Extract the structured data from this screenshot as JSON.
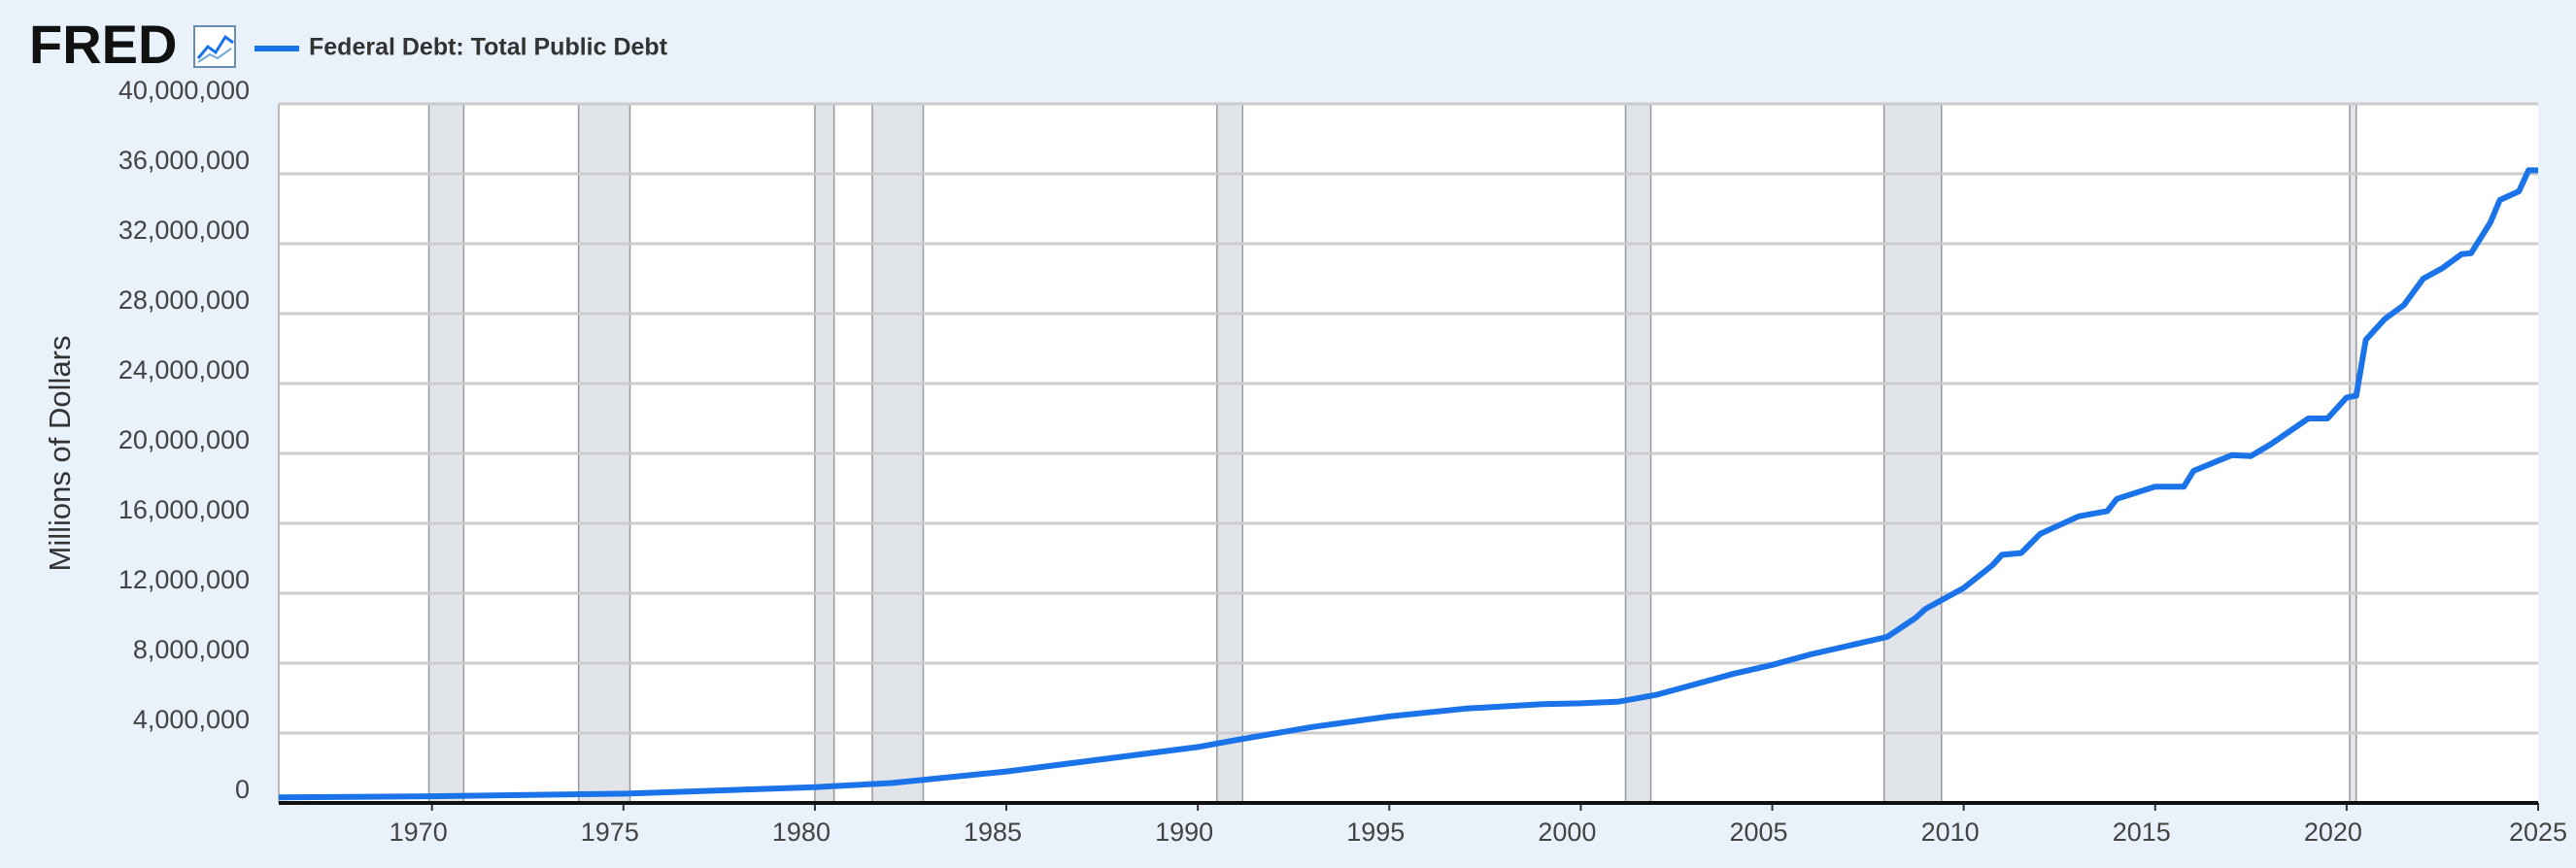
{
  "chart_data": {
    "type": "line",
    "header": {
      "logo": "FRED"
    },
    "y_label": "Millions of Dollars",
    "xlim": [
      1966,
      2025
    ],
    "xticks": [
      1970,
      1975,
      1980,
      1985,
      1990,
      1995,
      2000,
      2005,
      2010,
      2015,
      2020,
      2025
    ],
    "ylim": [
      0,
      40000000
    ],
    "yticks": [
      {
        "value": 0,
        "label": "0"
      },
      {
        "value": 4000000,
        "label": "4,000,000"
      },
      {
        "value": 8000000,
        "label": "8,000,000"
      },
      {
        "value": 12000000,
        "label": "12,000,000"
      },
      {
        "value": 16000000,
        "label": "16,000,000"
      },
      {
        "value": 20000000,
        "label": "20,000,000"
      },
      {
        "value": 24000000,
        "label": "24,000,000"
      },
      {
        "value": 28000000,
        "label": "28,000,000"
      },
      {
        "value": 32000000,
        "label": "32,000,000"
      },
      {
        "value": 36000000,
        "label": "36,000,000"
      },
      {
        "value": 40000000,
        "label": "40,000,000"
      }
    ],
    "grid": true,
    "recessions": [
      [
        1969.92,
        1970.83
      ],
      [
        1973.83,
        1975.17
      ],
      [
        1980.0,
        1980.5
      ],
      [
        1981.5,
        1982.83
      ],
      [
        1990.5,
        1991.17
      ],
      [
        2001.17,
        2001.83
      ],
      [
        2007.92,
        2009.42
      ],
      [
        2020.08,
        2020.25
      ]
    ],
    "x": [
      1966,
      1970,
      1975,
      1980,
      1982,
      1985,
      1990,
      1991,
      1993,
      1995,
      1997,
      1999,
      2000,
      2001,
      2002,
      2003,
      2004,
      2005,
      2006,
      2007,
      2008,
      2008.75,
      2009,
      2009.75,
      2010,
      2010.75,
      2011,
      2011.5,
      2012,
      2013,
      2013.75,
      2014,
      2015,
      2015.75,
      2016,
      2017,
      2017.5,
      2018,
      2019,
      2019.5,
      2020,
      2020.25,
      2020.5,
      2021,
      2021.5,
      2022,
      2022.5,
      2023,
      2023.25,
      2023.75,
      2024,
      2024.5,
      2024.75,
      2025
    ],
    "series": [
      {
        "name": "Federal Debt: Total Public Debt",
        "color": "#1a73e8",
        "values": [
          320000,
          380000,
          530000,
          900000,
          1140000,
          1800000,
          3200000,
          3600000,
          4350000,
          4950000,
          5400000,
          5650000,
          5700000,
          5800000,
          6200000,
          6800000,
          7400000,
          7900000,
          8500000,
          9000000,
          9500000,
          10600000,
          11100000,
          12000000,
          12300000,
          13600000,
          14200000,
          14300000,
          15400000,
          16400000,
          16700000,
          17400000,
          18100000,
          18100000,
          19000000,
          19900000,
          19850000,
          20500000,
          22000000,
          22000000,
          23200000,
          23300000,
          26500000,
          27700000,
          28500000,
          30000000,
          30600000,
          31400000,
          31460000,
          33200000,
          34500000,
          35000000,
          36200000,
          36200000
        ]
      }
    ]
  }
}
